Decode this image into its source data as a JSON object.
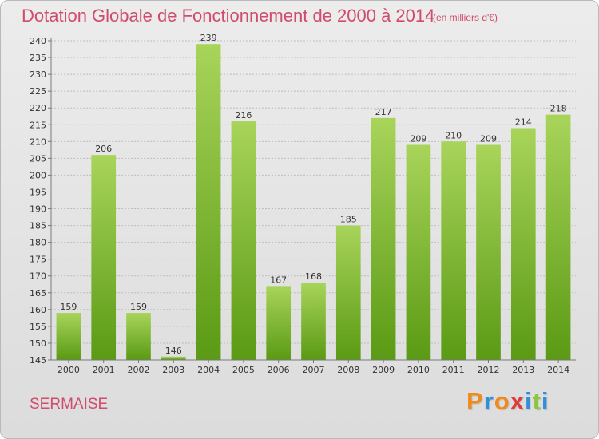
{
  "header": {
    "title": "Dotation Globale de Fonctionnement de 2000 à 2014",
    "subtitle": "(en milliers d'€)"
  },
  "footer": {
    "commune": "SERMAISE",
    "logo_text": "Proxiti",
    "logo_colors": [
      "#f08a1c",
      "#2f8fd8",
      "#f08a1c",
      "#e23b3b",
      "#2f8fd8",
      "#8cc63f",
      "#2f8fd8"
    ]
  },
  "colors": {
    "title": "#d14b6c",
    "bar_light": "#a8d45a",
    "bar_dark": "#5a9a14",
    "grid": "#bdbdbd",
    "axis": "#7a7a7a"
  },
  "chart_data": {
    "type": "bar",
    "title": "Dotation Globale de Fonctionnement de 2000 à 2014",
    "subtitle": "(en milliers d'€)",
    "xlabel": "",
    "ylabel": "",
    "categories": [
      "2000",
      "2001",
      "2002",
      "2003",
      "2004",
      "2005",
      "2006",
      "2007",
      "2008",
      "2009",
      "2010",
      "2011",
      "2012",
      "2013",
      "2014"
    ],
    "values": [
      159,
      206,
      159,
      146,
      239,
      216,
      167,
      168,
      185,
      217,
      209,
      210,
      209,
      214,
      218
    ],
    "ylim": [
      145,
      240
    ],
    "yticks": [
      145,
      150,
      155,
      160,
      165,
      170,
      175,
      180,
      185,
      190,
      195,
      200,
      205,
      210,
      215,
      220,
      225,
      230,
      235,
      240
    ],
    "grid": true,
    "data_labels": true
  }
}
